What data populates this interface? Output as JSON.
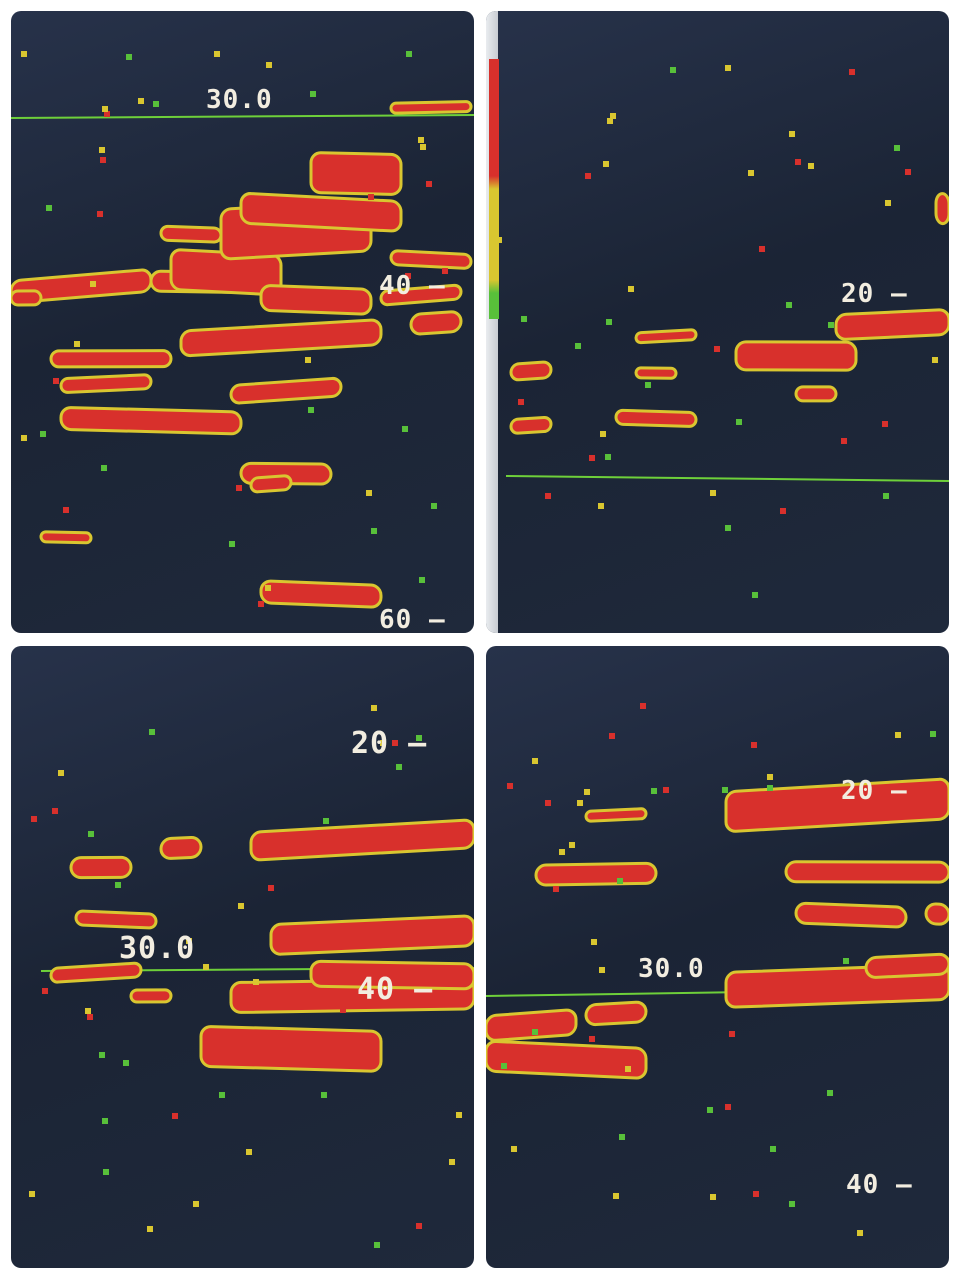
{
  "panels": [
    {
      "labels": {
        "depth_marker": "30.0",
        "scale_a": "40 —",
        "scale_b": "60 —"
      }
    },
    {
      "labels": {
        "scale_a": "20 —"
      }
    },
    {
      "labels": {
        "scale_a": "20 —",
        "depth_marker": "30.0",
        "scale_b": "40 —"
      }
    },
    {
      "labels": {
        "scale_a": "20 —",
        "depth_marker": "30.0",
        "scale_b": "40 —"
      }
    }
  ],
  "colors": {
    "background": "#1c2535",
    "strong_echo": "#d8302c",
    "medium_echo": "#d9c630",
    "weak_echo": "#58c03a",
    "depth_line": "#6ed03a"
  }
}
